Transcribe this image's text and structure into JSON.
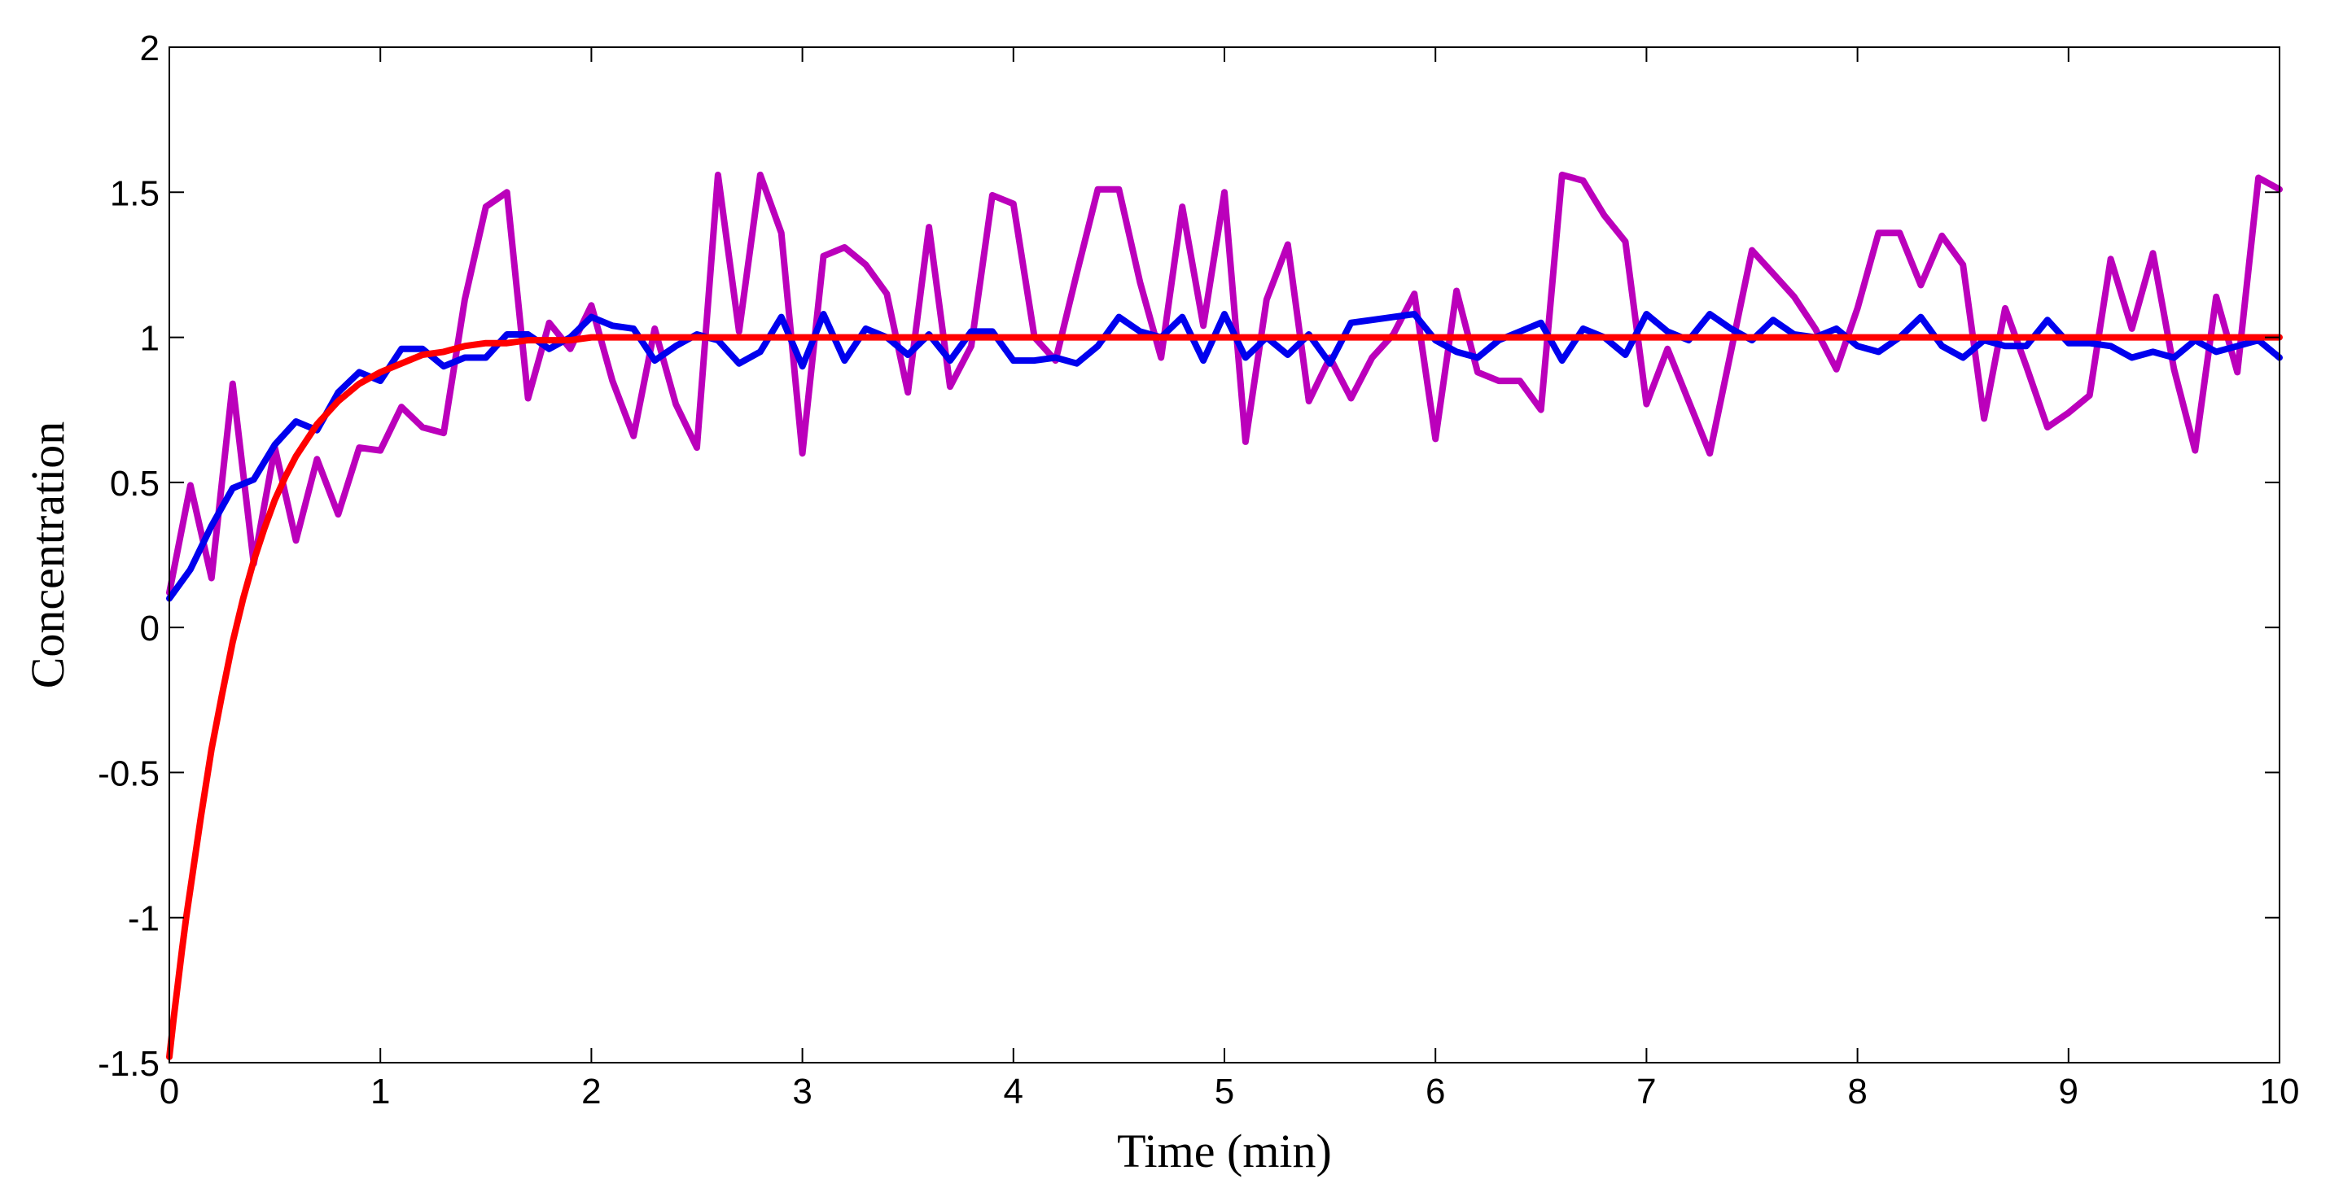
{
  "chart_data": {
    "type": "line",
    "title": "",
    "xlabel": "Time (min)",
    "ylabel": "Concentration",
    "xlim": [
      0,
      10
    ],
    "ylim": [
      -1.5,
      2
    ],
    "xticks": [
      0,
      1,
      2,
      3,
      4,
      5,
      6,
      7,
      8,
      9,
      10
    ],
    "yticks": [
      -1.5,
      -1,
      -0.5,
      0,
      0.5,
      1,
      1.5,
      2
    ],
    "xtick_labels": [
      "0",
      "1",
      "2",
      "3",
      "4",
      "5",
      "6",
      "7",
      "8",
      "9",
      "10"
    ],
    "ytick_labels": [
      "-1.5",
      "-1",
      "-0.5",
      "0",
      "0.5",
      "1",
      "1.5",
      "2"
    ],
    "grid": false,
    "series": [
      {
        "name": "magenta",
        "color": "#BB00BB",
        "x": [
          0,
          0.1,
          0.2,
          0.3,
          0.4,
          0.5,
          0.6,
          0.7,
          0.8,
          0.9,
          1.0,
          1.1,
          1.2,
          1.3,
          1.4,
          1.5,
          1.6,
          1.7,
          1.8,
          1.9,
          2.0,
          2.1,
          2.2,
          2.3,
          2.4,
          2.5,
          2.6,
          2.7,
          2.8,
          2.9,
          3.0,
          3.1,
          3.2,
          3.3,
          3.4,
          3.5,
          3.6,
          3.7,
          3.8,
          3.9,
          4.0,
          4.1,
          4.2,
          4.3,
          4.4,
          4.5,
          4.6,
          4.7,
          4.8,
          4.9,
          5.0,
          5.1,
          5.2,
          5.3,
          5.4,
          5.5,
          5.6,
          5.7,
          5.8,
          5.9,
          6.0,
          6.1,
          6.2,
          6.3,
          6.4,
          6.5,
          6.6,
          6.7,
          6.8,
          6.9,
          7.0,
          7.1,
          7.2,
          7.3,
          7.4,
          7.5,
          7.6,
          7.7,
          7.8,
          7.9,
          8.0,
          8.1,
          8.2,
          8.3,
          8.4,
          8.5,
          8.6,
          8.7,
          8.8,
          8.9,
          9.0,
          9.1,
          9.2,
          9.3,
          9.4,
          9.5,
          9.6,
          9.7,
          9.8,
          9.9,
          10.0
        ],
        "values": [
          0.12,
          0.49,
          0.17,
          0.84,
          0.22,
          0.62,
          0.3,
          0.58,
          0.39,
          0.62,
          0.61,
          0.76,
          0.69,
          0.67,
          1.13,
          1.45,
          1.5,
          0.79,
          1.05,
          0.96,
          1.11,
          0.85,
          0.66,
          1.03,
          0.77,
          0.62,
          1.56,
          1.02,
          1.56,
          1.36,
          0.6,
          1.28,
          1.31,
          1.25,
          1.15,
          0.81,
          1.38,
          0.83,
          0.97,
          1.49,
          1.46,
          1.0,
          0.92,
          1.22,
          1.51,
          1.51,
          1.19,
          0.93,
          1.45,
          1.04,
          1.5,
          0.64,
          1.13,
          1.32,
          0.78,
          0.93,
          0.79,
          0.93,
          1.01,
          1.15,
          0.65,
          1.16,
          0.88,
          0.85,
          0.85,
          0.75,
          1.56,
          1.54,
          1.42,
          1.33,
          0.77,
          0.96,
          0.78,
          0.6,
          0.95,
          1.3,
          1.22,
          1.14,
          1.03,
          0.89,
          1.1,
          1.36,
          1.36,
          1.18,
          1.35,
          1.25,
          0.72,
          1.1,
          0.9,
          0.69,
          0.74,
          0.8,
          1.27,
          1.03,
          1.29,
          0.89,
          0.61,
          1.14,
          0.88,
          1.55,
          1.51
        ]
      },
      {
        "name": "blue",
        "color": "#0000EE",
        "x": [
          0,
          0.1,
          0.2,
          0.3,
          0.4,
          0.5,
          0.6,
          0.7,
          0.8,
          0.9,
          1.0,
          1.1,
          1.2,
          1.3,
          1.4,
          1.5,
          1.6,
          1.7,
          1.8,
          1.9,
          2.0,
          2.1,
          2.2,
          2.3,
          2.4,
          2.5,
          2.6,
          2.7,
          2.8,
          2.9,
          3.0,
          3.1,
          3.2,
          3.3,
          3.4,
          3.5,
          3.6,
          3.7,
          3.8,
          3.9,
          4.0,
          4.1,
          4.2,
          4.3,
          4.4,
          4.5,
          4.6,
          4.7,
          4.8,
          4.9,
          5.0,
          5.1,
          5.2,
          5.3,
          5.4,
          5.5,
          5.6,
          5.7,
          5.8,
          5.9,
          6.0,
          6.1,
          6.2,
          6.3,
          6.4,
          6.5,
          6.6,
          6.7,
          6.8,
          6.9,
          7.0,
          7.1,
          7.2,
          7.3,
          7.4,
          7.5,
          7.6,
          7.7,
          7.8,
          7.9,
          8.0,
          8.1,
          8.2,
          8.3,
          8.4,
          8.5,
          8.6,
          8.7,
          8.8,
          8.9,
          9.0,
          9.1,
          9.2,
          9.3,
          9.4,
          9.5,
          9.6,
          9.7,
          9.8,
          9.9,
          10.0
        ],
        "values": [
          0.1,
          0.2,
          0.35,
          0.48,
          0.51,
          0.63,
          0.71,
          0.68,
          0.81,
          0.88,
          0.85,
          0.96,
          0.96,
          0.9,
          0.93,
          0.93,
          1.01,
          1.01,
          0.96,
          1.0,
          1.07,
          1.04,
          1.03,
          0.92,
          0.97,
          1.01,
          0.99,
          0.91,
          0.95,
          1.07,
          0.9,
          1.08,
          0.92,
          1.03,
          1.0,
          0.94,
          1.01,
          0.92,
          1.02,
          1.02,
          0.92,
          0.92,
          0.93,
          0.91,
          0.97,
          1.07,
          1.02,
          1.0,
          1.07,
          0.92,
          1.08,
          0.93,
          1.0,
          0.94,
          1.01,
          0.91,
          1.05,
          1.06,
          1.07,
          1.08,
          0.99,
          0.95,
          0.93,
          0.99,
          1.02,
          1.05,
          0.92,
          1.03,
          1.0,
          0.94,
          1.08,
          1.02,
          0.99,
          1.08,
          1.03,
          0.99,
          1.06,
          1.01,
          1.0,
          1.03,
          0.97,
          0.95,
          1.0,
          1.07,
          0.97,
          0.93,
          0.99,
          0.97,
          0.97,
          1.06,
          0.98,
          0.98,
          0.97,
          0.93,
          0.95,
          0.93,
          0.99,
          0.95,
          0.97,
          0.99,
          0.93
        ]
      },
      {
        "name": "red",
        "color": "#FF0000",
        "x": [
          0,
          0.02,
          0.04,
          0.06,
          0.08,
          0.1,
          0.15,
          0.2,
          0.25,
          0.3,
          0.35,
          0.4,
          0.45,
          0.5,
          0.55,
          0.6,
          0.7,
          0.8,
          0.9,
          1.0,
          1.1,
          1.2,
          1.3,
          1.4,
          1.5,
          1.6,
          1.7,
          1.8,
          1.9,
          2.0,
          2.5,
          3.0,
          3.5,
          4.0,
          5.0,
          6.0,
          7.0,
          8.0,
          9.0,
          10.0
        ],
        "values": [
          -1.48,
          -1.35,
          -1.23,
          -1.11,
          -1.0,
          -0.9,
          -0.65,
          -0.42,
          -0.23,
          -0.05,
          0.1,
          0.23,
          0.34,
          0.44,
          0.52,
          0.59,
          0.7,
          0.78,
          0.84,
          0.88,
          0.91,
          0.94,
          0.95,
          0.97,
          0.98,
          0.98,
          0.99,
          0.99,
          0.99,
          1.0,
          1.0,
          1.0,
          1.0,
          1.0,
          1.0,
          1.0,
          1.0,
          1.0,
          1.0,
          1.0
        ]
      }
    ]
  }
}
